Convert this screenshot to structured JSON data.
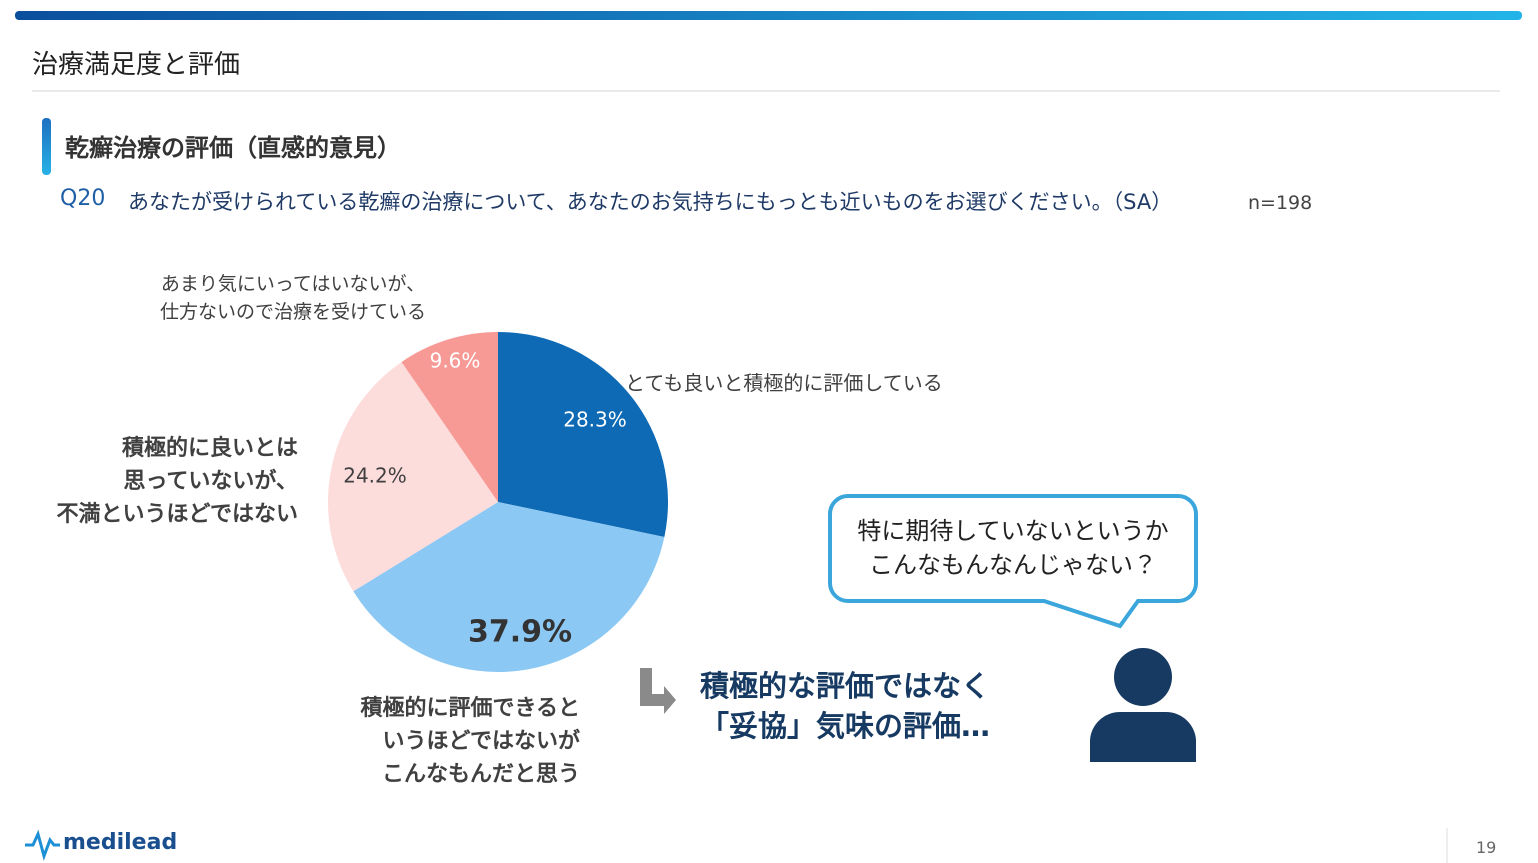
{
  "header": {
    "title": "治療満足度と評価",
    "heading": "乾癬治療の評価（直感的意見）"
  },
  "question": {
    "id": "Q20",
    "text": "あなたが受けられている乾癬の治療について、あなたのお気持ちにもっとも近いものをお選びください。（SA）",
    "n": "n=198"
  },
  "chart_data": {
    "type": "pie",
    "categories": [
      "とても良いと積極的に評価している",
      "積極的に評価できると\nいうほどではないが\nこんなもんだと思う",
      "積極的に良いとは\n思っていないが、\n不満というほどではない",
      "あまり気にいってはいないが、\n仕方ないので治療を受けている"
    ],
    "values": [
      28.3,
      37.9,
      24.2,
      9.6
    ],
    "value_labels": [
      "28.3%",
      "37.9%",
      "24.2%",
      "9.6%"
    ],
    "colors": [
      "#0e6ab4",
      "#8cc8f4",
      "#fddcdc",
      "#f79a96"
    ]
  },
  "callout": {
    "conclusion": "積極的な評価ではなく\n「妥協」気味の評価…",
    "speech": "特に期待していないというか\nこんなもんなんじゃない？"
  },
  "footer": {
    "logo": "medilead",
    "page": "19"
  }
}
